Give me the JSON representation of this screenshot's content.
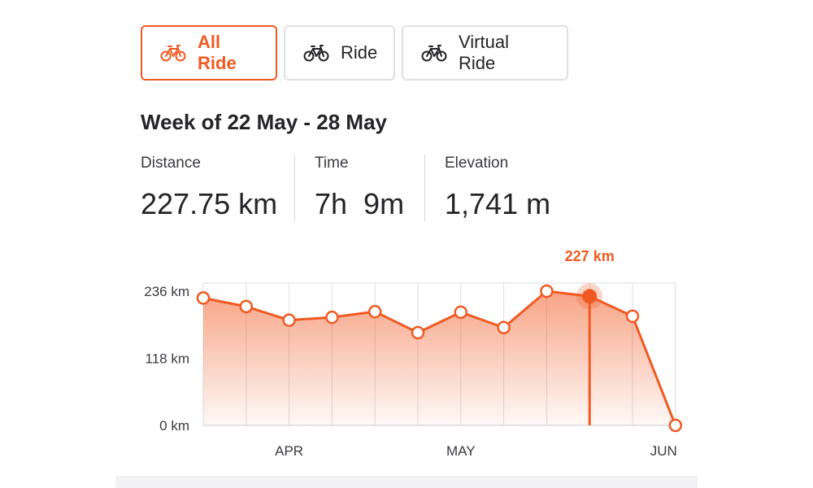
{
  "filters": [
    {
      "label": "All Ride",
      "icon": "bike-icon",
      "active": true
    },
    {
      "label": "Ride",
      "icon": "bike-icon",
      "active": false
    },
    {
      "label": "Virtual Ride",
      "icon": "bike-icon",
      "active": false
    }
  ],
  "week_title": "Week of 22 May - 28 May",
  "stats": [
    {
      "label": "Distance",
      "value": "227.75 km"
    },
    {
      "label": "Time",
      "value": "7h  9m"
    },
    {
      "label": "Elevation",
      "value": "1,741 m"
    }
  ],
  "colors": {
    "accent": "#f05a22",
    "grid": "#dcdce4",
    "text": "#242428"
  },
  "chart_data": {
    "type": "area",
    "x_tick_labels": [
      "APR",
      "MAY",
      "JUN"
    ],
    "y_tick_labels": [
      "236 km",
      "118 km",
      "0 km"
    ],
    "y_ticks": [
      236,
      118,
      0
    ],
    "ylim": [
      0,
      236
    ],
    "unit": "km",
    "values": [
      224,
      209,
      185,
      190,
      200,
      163,
      199,
      172,
      236,
      227,
      192,
      0
    ],
    "highlight_index": 9,
    "highlight_label": "227 km",
    "grid": true
  }
}
